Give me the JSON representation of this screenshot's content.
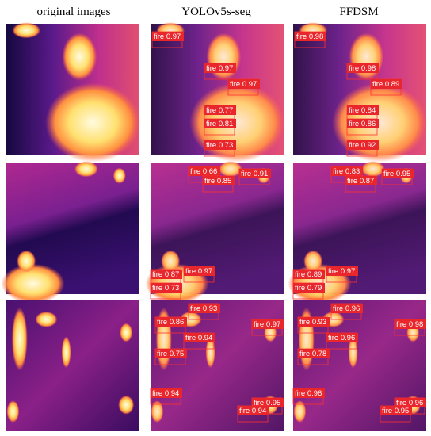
{
  "headers": [
    "original images",
    "YOLOv5s-seg",
    "FFDSM"
  ],
  "rows": [
    {
      "yolov5s_seg": [
        "fire 0.97",
        "fire 0.97",
        "fire 0.97",
        "fire 0.77",
        "fire 0.81",
        "fire 0.73"
      ],
      "ffdsm": [
        "fire 0.98",
        "fire 0.98",
        "fire 0.89",
        "fire 0.84",
        "fire 0.86",
        "fire 0.92"
      ]
    },
    {
      "yolov5s_seg": [
        "fire 0.66",
        "fire 0.91",
        "fire 0.85",
        "fire 0.87",
        "fire 0.97",
        "fire 0.73"
      ],
      "ffdsm": [
        "fire 0.83",
        "fire 0.95",
        "fire 0.87",
        "fire 0.89",
        "fire 0.97",
        "fire 0.79"
      ]
    },
    {
      "yolov5s_seg": [
        "fire 0.93",
        "fire 0.86",
        "fire 0.97",
        "fire 0.94",
        "fire 0.75",
        "fire 0.94",
        "fire 0.95",
        "fire 0.94"
      ],
      "ffdsm": [
        "fire 0.96",
        "fire 0.93",
        "fire 0.98",
        "fire 0.96",
        "fire 0.78",
        "fire 0.96",
        "fire 0.96",
        "fire 0.95"
      ]
    }
  ]
}
